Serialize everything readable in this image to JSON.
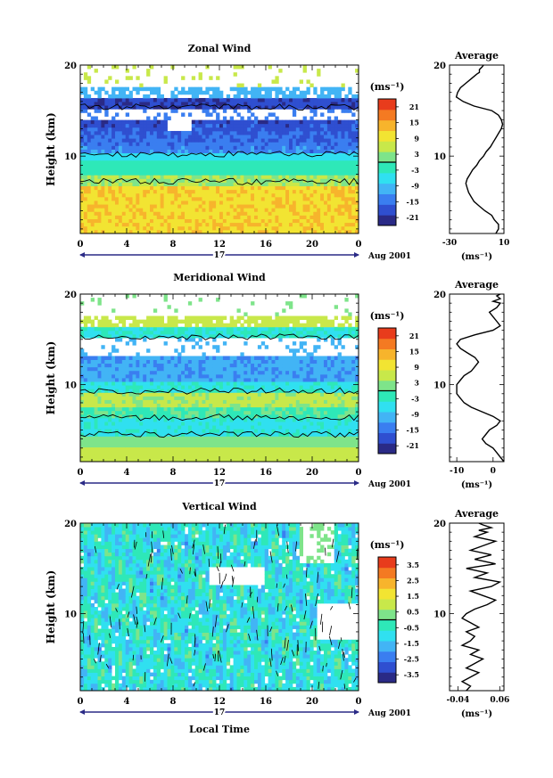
{
  "chart_data": [
    {
      "type": "heatmap",
      "title": "Zonal Wind",
      "ylabel": "Height (km)",
      "xticks": [
        "0",
        "4",
        "8",
        "12",
        "16",
        "20",
        "0"
      ],
      "yticks": [
        "10",
        "20"
      ],
      "xlim": [
        0,
        24
      ],
      "ylim": [
        1.5,
        20
      ],
      "day_label": "17",
      "month_label": "Aug 2001",
      "colorbar": {
        "unit": "(ms⁻¹)",
        "ticks": [
          "21",
          "15",
          "9",
          "3",
          "-3",
          "-9",
          "-15",
          "-21"
        ],
        "range": [
          -24,
          24
        ]
      },
      "profile_title": "Average",
      "profile_xticks": [
        "-30",
        "10"
      ],
      "profile_xunit": "(ms⁻¹)",
      "profile_yticks": [
        "10",
        "20"
      ],
      "profile": {
        "xlim": [
          -30,
          10
        ],
        "x": [
          4,
          6,
          6,
          3,
          1,
          -4,
          -8,
          -12,
          -14,
          -16,
          -17,
          -18,
          -17,
          -15,
          -13,
          -10,
          -8,
          -5,
          -3,
          0,
          2,
          4,
          6,
          8,
          9,
          8,
          6,
          1,
          -12,
          -20,
          -25,
          -24,
          -22,
          -18,
          -14,
          -10,
          -8,
          -8,
          -6,
          -5
        ],
        "y": [
          1.5,
          2.0,
          2.5,
          3.0,
          3.5,
          4.0,
          4.5,
          5.0,
          5.5,
          6.0,
          6.5,
          7.0,
          7.5,
          8.0,
          8.5,
          9.0,
          9.5,
          10.0,
          10.5,
          11.0,
          11.5,
          12.0,
          12.5,
          13.0,
          13.5,
          14.0,
          14.5,
          15.0,
          15.5,
          16.0,
          16.5,
          17.0,
          17.5,
          18.0,
          18.5,
          19.0,
          19.2,
          19.5,
          19.8,
          20.0
        ]
      }
    },
    {
      "type": "heatmap",
      "title": "Meridional Wind",
      "ylabel": "Height (km)",
      "xticks": [
        "0",
        "4",
        "8",
        "12",
        "16",
        "20",
        "0"
      ],
      "yticks": [
        "10",
        "20"
      ],
      "xlim": [
        0,
        24
      ],
      "ylim": [
        1.5,
        20
      ],
      "day_label": "17",
      "month_label": "Aug 2001",
      "colorbar": {
        "unit": "(ms⁻¹)",
        "ticks": [
          "21",
          "15",
          "9",
          "3",
          "-3",
          "-9",
          "-15",
          "-21"
        ],
        "range": [
          -24,
          24
        ]
      },
      "profile_title": "Average",
      "profile_xticks": [
        "-10",
        "0"
      ],
      "profile_xunit": "(ms⁻¹)",
      "profile_yticks": [
        "10",
        "20"
      ],
      "profile": {
        "xlim": [
          -12,
          3
        ],
        "x": [
          3,
          2,
          1,
          0,
          -2,
          -3,
          -2,
          -1,
          1,
          2,
          0,
          -3,
          -6,
          -8,
          -9,
          -10,
          -10,
          -10,
          -9,
          -8,
          -6,
          -5,
          -4,
          -5,
          -7,
          -9,
          -10,
          -9,
          -5,
          0,
          2,
          1,
          0,
          -1,
          1,
          2,
          0,
          2,
          1,
          2
        ],
        "y": [
          1.5,
          2.0,
          2.5,
          3.0,
          3.5,
          4.0,
          4.5,
          5.0,
          5.5,
          6.0,
          6.5,
          7.0,
          7.5,
          8.0,
          8.5,
          9.0,
          9.5,
          10.0,
          10.5,
          11.0,
          11.5,
          12.0,
          12.5,
          13.0,
          13.5,
          14.0,
          14.5,
          15.0,
          15.5,
          16.0,
          16.5,
          17.0,
          17.5,
          18.0,
          18.5,
          19.0,
          19.2,
          19.5,
          19.8,
          20.0
        ]
      }
    },
    {
      "type": "heatmap",
      "title": "Vertical Wind",
      "ylabel": "Height (km)",
      "xlabel": "Local Time",
      "xticks": [
        "0",
        "4",
        "8",
        "12",
        "16",
        "20",
        "0"
      ],
      "yticks": [
        "10",
        "20"
      ],
      "xlim": [
        0,
        24
      ],
      "ylim": [
        1.5,
        20
      ],
      "day_label": "17",
      "month_label": "Aug 2001",
      "colorbar": {
        "unit": "(ms⁻¹)",
        "ticks": [
          "3.5",
          "2.5",
          "1.5",
          "0.5",
          "-0.5",
          "-1.5",
          "-2.5",
          "-3.5"
        ],
        "range": [
          -4,
          4
        ]
      },
      "profile_title": "Average",
      "profile_xticks": [
        "-0.04",
        "0.06"
      ],
      "profile_xunit": "(ms⁻¹)",
      "profile_yticks": [
        "10",
        "20"
      ],
      "profile": {
        "xlim": [
          -0.06,
          0.07
        ],
        "x": [
          -0.02,
          -0.01,
          -0.03,
          -0.01,
          0.01,
          -0.02,
          0.0,
          0.02,
          -0.01,
          0.01,
          -0.03,
          -0.01,
          0.0,
          -0.02,
          0.01,
          -0.01,
          -0.03,
          -0.02,
          0.0,
          0.03,
          0.05,
          0.02,
          -0.01,
          0.04,
          0.06,
          0.0,
          0.03,
          -0.02,
          0.05,
          0.0,
          0.04,
          -0.01,
          0.02,
          0.05,
          0.0,
          0.03,
          0.01,
          0.04,
          0.02,
          0.01
        ],
        "y": [
          1.5,
          2.0,
          2.5,
          3.0,
          3.5,
          4.0,
          4.5,
          5.0,
          5.5,
          6.0,
          6.5,
          7.0,
          7.5,
          8.0,
          8.5,
          9.0,
          9.5,
          10.0,
          10.5,
          11.0,
          11.5,
          12.0,
          12.5,
          13.0,
          13.5,
          14.0,
          14.5,
          15.0,
          15.5,
          16.0,
          16.5,
          17.0,
          17.5,
          18.0,
          18.5,
          19.0,
          19.2,
          19.5,
          19.8,
          20.0
        ]
      }
    }
  ]
}
